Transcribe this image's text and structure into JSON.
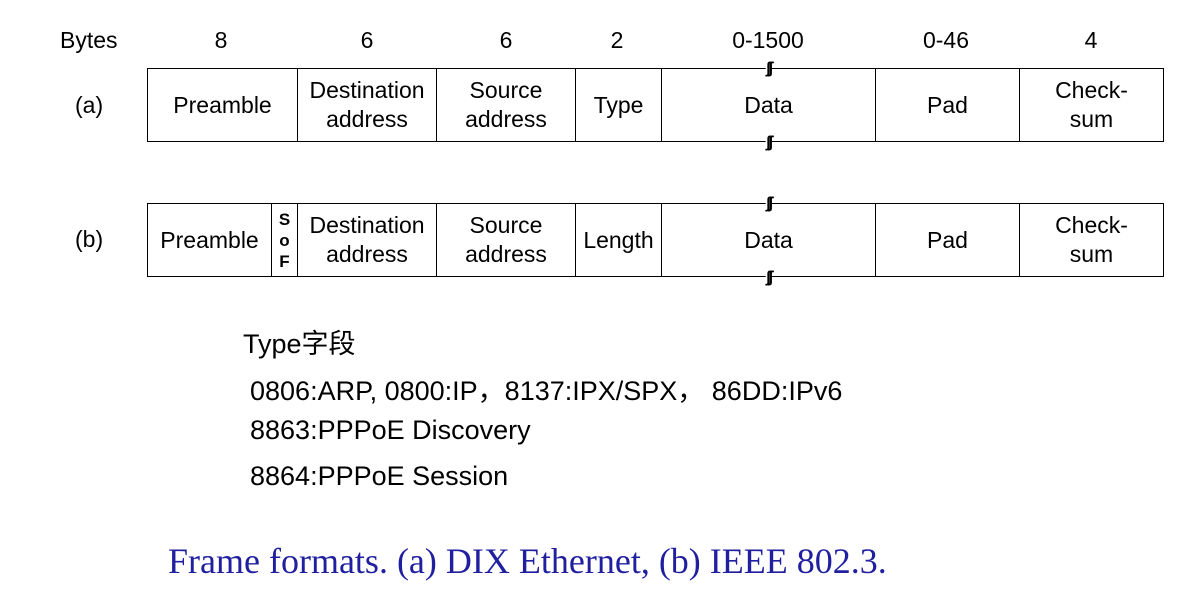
{
  "header": {
    "label": "Bytes",
    "sizes": [
      "8",
      "6",
      "6",
      "2",
      "0-1500",
      "0-46",
      "4"
    ]
  },
  "frame_a": {
    "label": "(a)",
    "fields": [
      "Preamble",
      "Destination\naddress",
      "Source\naddress",
      "Type",
      "Data",
      "Pad",
      "Check-\nsum"
    ]
  },
  "frame_b": {
    "label": "(b)",
    "fields": [
      "Preamble",
      "Destination\naddress",
      "Source\naddress",
      "Length",
      "Data",
      "Pad",
      "Check-\nsum"
    ],
    "sof": [
      "S",
      "o",
      "F"
    ]
  },
  "type_notes": {
    "heading": "Type字段",
    "lines": [
      "0806:ARP,  0800:IP，8137:IPX/SPX，  86DD:IPv6",
      "8863:PPPoE Discovery",
      "8864:PPPoE Session"
    ]
  },
  "caption": "Frame formats. (a) DIX Ethernet,  (b) IEEE 802.3.",
  "colors": {
    "caption": "#1f1f9f"
  }
}
